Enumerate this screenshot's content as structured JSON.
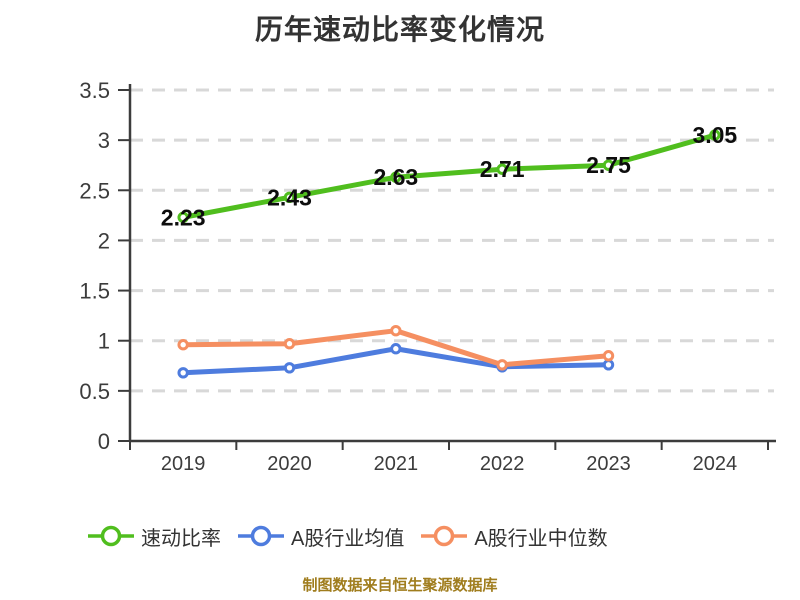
{
  "source_note": "制图数据来自恒生聚源数据库",
  "colors": {
    "quick-ratio": "#50BE1E",
    "industry-average": "#4E7CDE",
    "industry-median": "#F58F61",
    "axis": "#3C3C3C",
    "grid": "#D8D8D8",
    "tick_label": "#3C3C3C",
    "data_label": "#0D0D0D",
    "title_text": "#333333",
    "footer_text": "#A07D1E",
    "marker_fill": "#FFFFFF"
  },
  "chart_data": {
    "type": "line",
    "title": "历年速动比率变化情况",
    "categories": [
      "2019",
      "2020",
      "2021",
      "2022",
      "2023",
      "2024"
    ],
    "series": [
      {
        "name": "速动比率",
        "key": "quick-ratio",
        "values": [
          2.23,
          2.43,
          2.63,
          2.71,
          2.75,
          3.05
        ],
        "point_labels": [
          "2.23",
          "2.43",
          "2.63",
          "2.71",
          "2.75",
          "3.05"
        ],
        "labeled": true
      },
      {
        "name": "A股行业均值",
        "key": "industry-average",
        "values": [
          0.68,
          0.73,
          0.92,
          0.74,
          0.76,
          null
        ],
        "labeled": false
      },
      {
        "name": "A股行业中位数",
        "key": "industry-median",
        "values": [
          0.96,
          0.97,
          1.1,
          0.76,
          0.85,
          null
        ],
        "labeled": false
      }
    ],
    "ylim": [
      0,
      3.5
    ],
    "ytick_step": 0.5,
    "ytick_labels": [
      "0",
      "0.5",
      "1",
      "1.5",
      "2",
      "2.5",
      "3",
      "3.5"
    ],
    "grid": "dashed-horizontal",
    "legend_position": "bottom",
    "xlabel": "",
    "ylabel": ""
  }
}
